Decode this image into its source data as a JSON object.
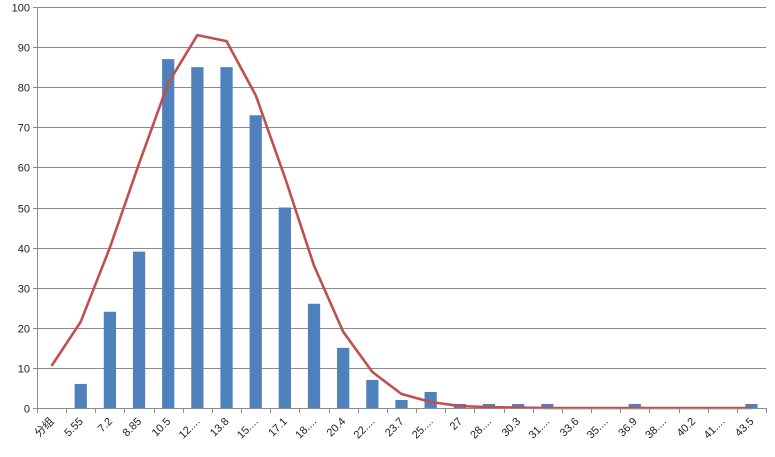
{
  "colors": {
    "bar": "#4F81BD",
    "line": "#C0504D",
    "grid": "#8C8C8C",
    "axis": "#8C8C8C"
  },
  "chart_data": {
    "type": "bar",
    "categories": [
      "分组",
      "5.55",
      "7.2",
      "8.85",
      "10.5",
      "12....",
      "13.8",
      "15....",
      "17.1",
      "18....",
      "20.4",
      "22....",
      "23.7",
      "25....",
      "27",
      "28....",
      "30.3",
      "31....",
      "33.6",
      "35....",
      "36.9",
      "38....",
      "40.2",
      "41....",
      "43.5"
    ],
    "series": [
      {
        "type": "bar",
        "values": [
          0,
          6,
          24,
          39,
          87,
          85,
          85,
          73,
          50,
          26,
          15,
          7,
          2,
          4,
          1,
          1,
          1,
          1,
          0,
          0,
          1,
          0,
          0,
          0,
          1
        ]
      },
      {
        "type": "line",
        "values": [
          10.5,
          21.5,
          40,
          61,
          81,
          93,
          91.5,
          78,
          57.5,
          35.5,
          19,
          9,
          3.5,
          1.5,
          0.5,
          0.2,
          0.1,
          0,
          0,
          0,
          0,
          0,
          0,
          0,
          0
        ]
      }
    ],
    "title": "",
    "xlabel": "",
    "ylabel": "",
    "ylim": [
      0,
      100
    ],
    "yticks": [
      0,
      10,
      20,
      30,
      40,
      50,
      60,
      70,
      80,
      90,
      100
    ],
    "grid": true,
    "legend": "none"
  }
}
